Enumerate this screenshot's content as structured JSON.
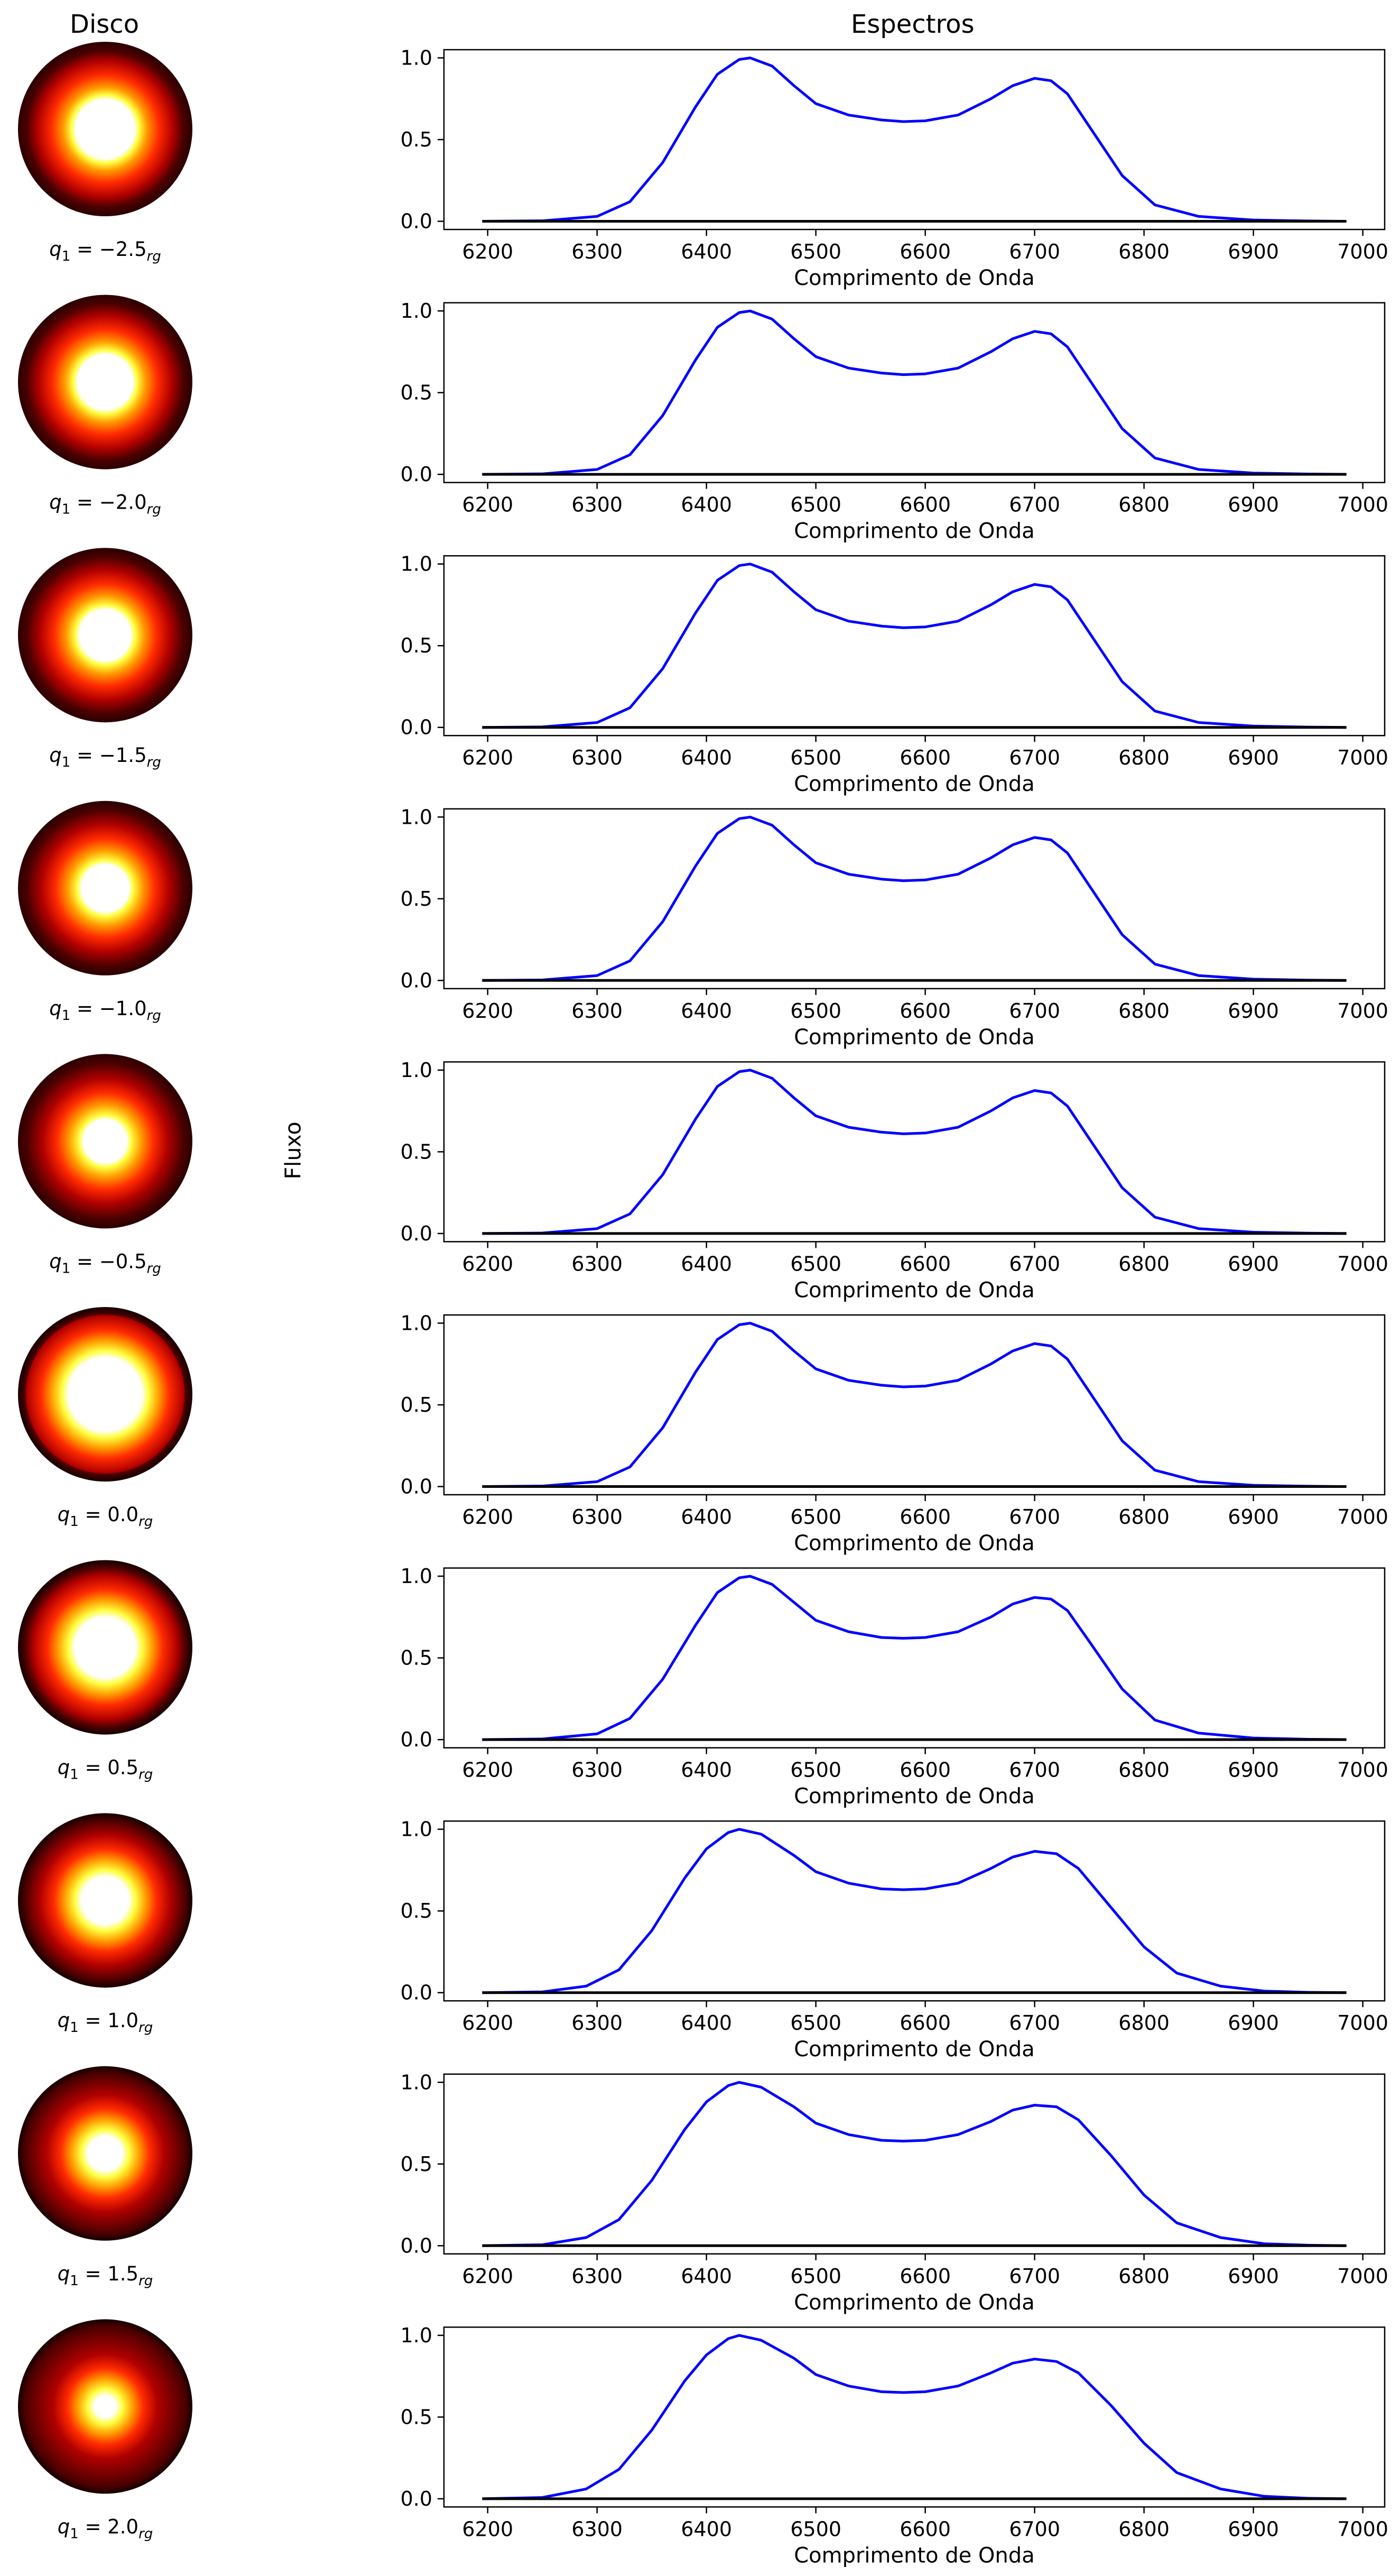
{
  "figure": {
    "left_title": "Disco",
    "right_title": "Espectros",
    "shared_ylabel": "Fluxo"
  },
  "colors": {
    "spectrum": "#0000ff",
    "baseline": "#000000",
    "disk_cmap": [
      "#000000",
      "#4a0000",
      "#b00000",
      "#ff2a00",
      "#ff9a00",
      "#ffff40",
      "#ffffff"
    ]
  },
  "chart_data": [
    {
      "type": "line",
      "panel": 1,
      "disk_label": {
        "prefix": "q",
        "sub1": "1",
        "text": " = −2.5",
        "sub2": "rg"
      },
      "q1": -2.5,
      "xlabel": "Comprimento de Onda",
      "ylabel": "",
      "xlim": [
        6160,
        7020
      ],
      "ylim": [
        -0.05,
        1.05
      ],
      "xticks": [
        6200,
        6300,
        6400,
        6500,
        6600,
        6700,
        6800,
        6900,
        7000
      ],
      "yticks": [
        0.0,
        0.5,
        1.0
      ],
      "series": [
        {
          "x": [
            6195,
            6250,
            6300,
            6330,
            6360,
            6390,
            6410,
            6430,
            6440,
            6460,
            6480,
            6500,
            6530,
            6560,
            6580,
            6600,
            6630,
            6660,
            6680,
            6700,
            6715,
            6730,
            6750,
            6780,
            6810,
            6850,
            6900,
            6950,
            6985
          ],
          "y": [
            0.0,
            0.003,
            0.03,
            0.12,
            0.36,
            0.7,
            0.9,
            0.99,
            1.0,
            0.95,
            0.83,
            0.72,
            0.65,
            0.62,
            0.61,
            0.615,
            0.65,
            0.75,
            0.83,
            0.875,
            0.86,
            0.78,
            0.58,
            0.28,
            0.1,
            0.03,
            0.008,
            0.002,
            0.0
          ]
        },
        {
          "x": [
            6195,
            6985
          ],
          "y": [
            0.0,
            0.0
          ]
        }
      ]
    },
    {
      "type": "line",
      "panel": 2,
      "disk_label": {
        "prefix": "q",
        "sub1": "1",
        "text": " = −2.0",
        "sub2": "rg"
      },
      "q1": -2.0,
      "xlabel": "Comprimento de Onda",
      "ylabel": "",
      "xlim": [
        6160,
        7020
      ],
      "ylim": [
        -0.05,
        1.05
      ],
      "xticks": [
        6200,
        6300,
        6400,
        6500,
        6600,
        6700,
        6800,
        6900,
        7000
      ],
      "yticks": [
        0.0,
        0.5,
        1.0
      ],
      "series": [
        {
          "x": [
            6195,
            6250,
            6300,
            6330,
            6360,
            6390,
            6410,
            6430,
            6440,
            6460,
            6480,
            6500,
            6530,
            6560,
            6580,
            6600,
            6630,
            6660,
            6680,
            6700,
            6715,
            6730,
            6750,
            6780,
            6810,
            6850,
            6900,
            6950,
            6985
          ],
          "y": [
            0.0,
            0.003,
            0.03,
            0.12,
            0.36,
            0.7,
            0.9,
            0.99,
            1.0,
            0.95,
            0.83,
            0.72,
            0.65,
            0.62,
            0.61,
            0.615,
            0.65,
            0.75,
            0.83,
            0.875,
            0.86,
            0.78,
            0.58,
            0.28,
            0.1,
            0.03,
            0.008,
            0.002,
            0.0
          ]
        },
        {
          "x": [
            6195,
            6985
          ],
          "y": [
            0.0,
            0.0
          ]
        }
      ]
    },
    {
      "type": "line",
      "panel": 3,
      "disk_label": {
        "prefix": "q",
        "sub1": "1",
        "text": " = −1.5",
        "sub2": "rg"
      },
      "q1": -1.5,
      "xlabel": "Comprimento de Onda",
      "ylabel": "",
      "xlim": [
        6160,
        7020
      ],
      "ylim": [
        -0.05,
        1.05
      ],
      "xticks": [
        6200,
        6300,
        6400,
        6500,
        6600,
        6700,
        6800,
        6900,
        7000
      ],
      "yticks": [
        0.0,
        0.5,
        1.0
      ],
      "series": [
        {
          "x": [
            6195,
            6250,
            6300,
            6330,
            6360,
            6390,
            6410,
            6430,
            6440,
            6460,
            6480,
            6500,
            6530,
            6560,
            6580,
            6600,
            6630,
            6660,
            6680,
            6700,
            6715,
            6730,
            6750,
            6780,
            6810,
            6850,
            6900,
            6950,
            6985
          ],
          "y": [
            0.0,
            0.003,
            0.03,
            0.12,
            0.36,
            0.7,
            0.9,
            0.99,
            1.0,
            0.95,
            0.83,
            0.72,
            0.65,
            0.62,
            0.61,
            0.615,
            0.65,
            0.75,
            0.83,
            0.875,
            0.86,
            0.78,
            0.58,
            0.28,
            0.1,
            0.03,
            0.008,
            0.002,
            0.0
          ]
        },
        {
          "x": [
            6195,
            6985
          ],
          "y": [
            0.0,
            0.0
          ]
        }
      ]
    },
    {
      "type": "line",
      "panel": 4,
      "disk_label": {
        "prefix": "q",
        "sub1": "1",
        "text": " = −1.0",
        "sub2": "rg"
      },
      "q1": -1.0,
      "xlabel": "Comprimento de Onda",
      "ylabel": "",
      "xlim": [
        6160,
        7020
      ],
      "ylim": [
        -0.05,
        1.05
      ],
      "xticks": [
        6200,
        6300,
        6400,
        6500,
        6600,
        6700,
        6800,
        6900,
        7000
      ],
      "yticks": [
        0.0,
        0.5,
        1.0
      ],
      "series": [
        {
          "x": [
            6195,
            6250,
            6300,
            6330,
            6360,
            6390,
            6410,
            6430,
            6440,
            6460,
            6480,
            6500,
            6530,
            6560,
            6580,
            6600,
            6630,
            6660,
            6680,
            6700,
            6715,
            6730,
            6750,
            6780,
            6810,
            6850,
            6900,
            6950,
            6985
          ],
          "y": [
            0.0,
            0.003,
            0.03,
            0.12,
            0.36,
            0.7,
            0.9,
            0.99,
            1.0,
            0.95,
            0.83,
            0.72,
            0.65,
            0.62,
            0.61,
            0.615,
            0.65,
            0.75,
            0.83,
            0.875,
            0.86,
            0.78,
            0.58,
            0.28,
            0.1,
            0.03,
            0.008,
            0.002,
            0.0
          ]
        },
        {
          "x": [
            6195,
            6985
          ],
          "y": [
            0.0,
            0.0
          ]
        }
      ]
    },
    {
      "type": "line",
      "panel": 5,
      "disk_label": {
        "prefix": "q",
        "sub1": "1",
        "text": " = −0.5",
        "sub2": "rg"
      },
      "q1": -0.5,
      "xlabel": "Comprimento de Onda",
      "ylabel": "",
      "xlim": [
        6160,
        7020
      ],
      "ylim": [
        -0.05,
        1.05
      ],
      "xticks": [
        6200,
        6300,
        6400,
        6500,
        6600,
        6700,
        6800,
        6900,
        7000
      ],
      "yticks": [
        0.0,
        0.5,
        1.0
      ],
      "series": [
        {
          "x": [
            6195,
            6250,
            6300,
            6330,
            6360,
            6390,
            6410,
            6430,
            6440,
            6460,
            6480,
            6500,
            6530,
            6560,
            6580,
            6600,
            6630,
            6660,
            6680,
            6700,
            6715,
            6730,
            6750,
            6780,
            6810,
            6850,
            6900,
            6950,
            6985
          ],
          "y": [
            0.0,
            0.003,
            0.03,
            0.12,
            0.36,
            0.7,
            0.9,
            0.99,
            1.0,
            0.95,
            0.83,
            0.72,
            0.65,
            0.62,
            0.61,
            0.615,
            0.65,
            0.75,
            0.83,
            0.875,
            0.86,
            0.78,
            0.58,
            0.28,
            0.1,
            0.03,
            0.008,
            0.002,
            0.0
          ]
        },
        {
          "x": [
            6195,
            6985
          ],
          "y": [
            0.0,
            0.0
          ]
        }
      ]
    },
    {
      "type": "line",
      "panel": 6,
      "disk_label": {
        "prefix": "q",
        "sub1": "1",
        "text": " = 0.0",
        "sub2": "rg"
      },
      "q1": 0.0,
      "xlabel": "Comprimento de Onda",
      "ylabel": "",
      "xlim": [
        6160,
        7020
      ],
      "ylim": [
        -0.05,
        1.05
      ],
      "xticks": [
        6200,
        6300,
        6400,
        6500,
        6600,
        6700,
        6800,
        6900,
        7000
      ],
      "yticks": [
        0.0,
        0.5,
        1.0
      ],
      "series": [
        {
          "x": [
            6195,
            6250,
            6300,
            6330,
            6360,
            6390,
            6410,
            6430,
            6440,
            6460,
            6480,
            6500,
            6530,
            6560,
            6580,
            6600,
            6630,
            6660,
            6680,
            6700,
            6715,
            6730,
            6750,
            6780,
            6810,
            6850,
            6900,
            6950,
            6985
          ],
          "y": [
            0.0,
            0.003,
            0.03,
            0.12,
            0.36,
            0.7,
            0.9,
            0.99,
            1.0,
            0.95,
            0.83,
            0.72,
            0.65,
            0.62,
            0.61,
            0.615,
            0.65,
            0.75,
            0.83,
            0.875,
            0.86,
            0.78,
            0.58,
            0.28,
            0.1,
            0.03,
            0.008,
            0.002,
            0.0
          ]
        },
        {
          "x": [
            6195,
            6985
          ],
          "y": [
            0.0,
            0.0
          ]
        }
      ]
    },
    {
      "type": "line",
      "panel": 7,
      "disk_label": {
        "prefix": "q",
        "sub1": "1",
        "text": " = 0.5",
        "sub2": "rg"
      },
      "q1": 0.5,
      "xlabel": "Comprimento de Onda",
      "ylabel": "",
      "xlim": [
        6160,
        7020
      ],
      "ylim": [
        -0.05,
        1.05
      ],
      "xticks": [
        6200,
        6300,
        6400,
        6500,
        6600,
        6700,
        6800,
        6900,
        7000
      ],
      "yticks": [
        0.0,
        0.5,
        1.0
      ],
      "series": [
        {
          "x": [
            6195,
            6250,
            6300,
            6330,
            6360,
            6390,
            6410,
            6430,
            6440,
            6460,
            6480,
            6500,
            6530,
            6560,
            6580,
            6600,
            6630,
            6660,
            6680,
            6700,
            6715,
            6730,
            6750,
            6780,
            6810,
            6850,
            6900,
            6950,
            6985
          ],
          "y": [
            0.0,
            0.004,
            0.035,
            0.13,
            0.37,
            0.7,
            0.9,
            0.99,
            1.0,
            0.95,
            0.84,
            0.73,
            0.66,
            0.625,
            0.62,
            0.625,
            0.66,
            0.75,
            0.83,
            0.87,
            0.86,
            0.79,
            0.6,
            0.31,
            0.12,
            0.04,
            0.01,
            0.002,
            0.0
          ]
        },
        {
          "x": [
            6195,
            6985
          ],
          "y": [
            0.0,
            0.0
          ]
        }
      ]
    },
    {
      "type": "line",
      "panel": 8,
      "disk_label": {
        "prefix": "q",
        "sub1": "1",
        "text": " = 1.0",
        "sub2": "rg"
      },
      "q1": 1.0,
      "xlabel": "Comprimento de Onda",
      "ylabel": "",
      "xlim": [
        6160,
        7020
      ],
      "ylim": [
        -0.05,
        1.05
      ],
      "xticks": [
        6200,
        6300,
        6400,
        6500,
        6600,
        6700,
        6800,
        6900,
        7000
      ],
      "yticks": [
        0.0,
        0.5,
        1.0
      ],
      "series": [
        {
          "x": [
            6195,
            6250,
            6290,
            6320,
            6350,
            6380,
            6400,
            6420,
            6430,
            6450,
            6480,
            6500,
            6530,
            6560,
            6580,
            6600,
            6630,
            6660,
            6680,
            6700,
            6720,
            6740,
            6770,
            6800,
            6830,
            6870,
            6910,
            6950,
            6985
          ],
          "y": [
            0.0,
            0.005,
            0.04,
            0.14,
            0.38,
            0.7,
            0.88,
            0.98,
            1.0,
            0.97,
            0.84,
            0.74,
            0.67,
            0.635,
            0.63,
            0.635,
            0.67,
            0.76,
            0.83,
            0.865,
            0.85,
            0.76,
            0.52,
            0.28,
            0.12,
            0.04,
            0.01,
            0.002,
            0.0
          ]
        },
        {
          "x": [
            6195,
            6985
          ],
          "y": [
            0.0,
            0.0
          ]
        }
      ]
    },
    {
      "type": "line",
      "panel": 9,
      "disk_label": {
        "prefix": "q",
        "sub1": "1",
        "text": " = 1.5",
        "sub2": "rg"
      },
      "q1": 1.5,
      "xlabel": "Comprimento de Onda",
      "ylabel": "",
      "xlim": [
        6160,
        7020
      ],
      "ylim": [
        -0.05,
        1.05
      ],
      "xticks": [
        6200,
        6300,
        6400,
        6500,
        6600,
        6700,
        6800,
        6900,
        7000
      ],
      "yticks": [
        0.0,
        0.5,
        1.0
      ],
      "series": [
        {
          "x": [
            6195,
            6250,
            6290,
            6320,
            6350,
            6380,
            6400,
            6420,
            6430,
            6450,
            6480,
            6500,
            6530,
            6560,
            6580,
            6600,
            6630,
            6660,
            6680,
            6700,
            6720,
            6740,
            6770,
            6800,
            6830,
            6870,
            6910,
            6950,
            6985
          ],
          "y": [
            0.0,
            0.006,
            0.05,
            0.16,
            0.4,
            0.71,
            0.88,
            0.98,
            1.0,
            0.97,
            0.85,
            0.75,
            0.68,
            0.645,
            0.64,
            0.645,
            0.68,
            0.76,
            0.83,
            0.86,
            0.85,
            0.77,
            0.55,
            0.31,
            0.14,
            0.05,
            0.012,
            0.003,
            0.0
          ]
        },
        {
          "x": [
            6195,
            6985
          ],
          "y": [
            0.0,
            0.0
          ]
        }
      ]
    },
    {
      "type": "line",
      "panel": 10,
      "disk_label": {
        "prefix": "q",
        "sub1": "1",
        "text": " = 2.0",
        "sub2": "rg"
      },
      "q1": 2.0,
      "xlabel": "Comprimento de Onda",
      "ylabel": "",
      "xlim": [
        6160,
        7020
      ],
      "ylim": [
        -0.05,
        1.05
      ],
      "xticks": [
        6200,
        6300,
        6400,
        6500,
        6600,
        6700,
        6800,
        6900,
        7000
      ],
      "yticks": [
        0.0,
        0.5,
        1.0
      ],
      "series": [
        {
          "x": [
            6195,
            6250,
            6290,
            6320,
            6350,
            6380,
            6400,
            6420,
            6430,
            6450,
            6480,
            6500,
            6530,
            6560,
            6580,
            6600,
            6630,
            6660,
            6680,
            6700,
            6720,
            6740,
            6770,
            6800,
            6830,
            6870,
            6910,
            6950,
            6985
          ],
          "y": [
            0.0,
            0.008,
            0.06,
            0.18,
            0.42,
            0.72,
            0.88,
            0.98,
            1.0,
            0.97,
            0.86,
            0.76,
            0.69,
            0.655,
            0.65,
            0.655,
            0.69,
            0.77,
            0.83,
            0.855,
            0.84,
            0.77,
            0.57,
            0.34,
            0.16,
            0.06,
            0.015,
            0.003,
            0.0
          ]
        },
        {
          "x": [
            6195,
            6985
          ],
          "y": [
            0.0,
            0.0
          ]
        }
      ]
    }
  ]
}
